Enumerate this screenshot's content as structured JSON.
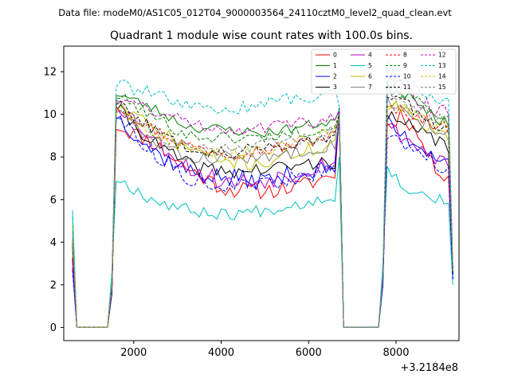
{
  "suptitle": "Data file: modeM0/AS1C05_012T04_9000003564_24110cztM0_level2_quad_clean.evt",
  "chart_data": {
    "type": "line",
    "title": "Quadrant 1 module wise count rates with 100.0s bins.",
    "xlabel": "",
    "ylabel": "",
    "x_offset_label": "+3.2184e8",
    "xlim": [
      400,
      9440
    ],
    "ylim": [
      -0.62,
      13.2
    ],
    "xticks": [
      2000,
      4000,
      6000,
      8000
    ],
    "yticks": [
      0,
      2,
      4,
      6,
      8,
      10,
      12
    ],
    "grid": false,
    "legend_position": "top-right",
    "legend_columns": 4,
    "x_start": 600,
    "x_step": 100,
    "num_points": 88,
    "segments": [
      {
        "kind": "gap",
        "start": 700,
        "end": 1400
      },
      {
        "kind": "active",
        "start": 1500,
        "end": 6700
      },
      {
        "kind": "gap",
        "start": 6800,
        "end": 7700
      },
      {
        "kind": "active",
        "start": 7800,
        "end": 9200
      }
    ],
    "series": [
      {
        "name": "0",
        "color": "#ff0000",
        "dash": false,
        "start_value": 3.3,
        "edge_values": [
          1.6,
          0.5,
          10.0,
          2.2,
          2.5
        ],
        "level_a": [
          9.5,
          8.7,
          7.4,
          6.5,
          6.4,
          6.6,
          7.2
        ],
        "level_b": [
          9.4,
          10.1,
          9.0,
          7.6,
          7.1
        ],
        "noise_a": 0.4,
        "noise_b": 0.4,
        "seed": 11
      },
      {
        "name": "1",
        "color": "#008000",
        "dash": false,
        "start_value": 3.6,
        "edge_values": [
          1.8,
          0.4,
          10.2,
          2.1,
          2.6
        ],
        "level_a": [
          11.0,
          10.3,
          9.4,
          9.3,
          9.1,
          9.4,
          9.7
        ],
        "level_b": [
          11.2,
          11.1,
          10.7,
          10.0,
          9.5
        ],
        "noise_a": 0.25,
        "noise_b": 0.3,
        "seed": 23
      },
      {
        "name": "2",
        "color": "#0000ff",
        "dash": false,
        "start_value": 2.8,
        "edge_values": [
          1.7,
          0.5,
          10.1,
          2.0,
          2.3
        ],
        "level_a": [
          10.0,
          8.3,
          7.3,
          7.0,
          6.9,
          7.2,
          7.5
        ],
        "level_b": [
          9.6,
          9.0,
          8.6,
          8.2,
          7.8
        ],
        "noise_a": 0.45,
        "noise_b": 0.4,
        "seed": 37
      },
      {
        "name": "3",
        "color": "#000000",
        "dash": false,
        "start_value": 3.2,
        "edge_values": [
          1.6,
          0.5,
          10.3,
          2.3,
          2.6
        ],
        "level_a": [
          10.3,
          8.7,
          7.6,
          7.3,
          7.4,
          7.6,
          7.8
        ],
        "level_b": [
          9.8,
          9.6,
          9.1,
          8.9,
          8.4
        ],
        "noise_a": 0.35,
        "noise_b": 0.4,
        "seed": 41
      },
      {
        "name": "4",
        "color": "#bf00bf",
        "dash": false,
        "start_value": 3.1,
        "edge_values": [
          1.7,
          0.5,
          10.1,
          2.2,
          2.5
        ],
        "level_a": [
          10.6,
          8.9,
          7.5,
          6.8,
          6.9,
          7.3,
          7.9
        ],
        "level_b": [
          9.4,
          9.0,
          8.5,
          8.0,
          7.8
        ],
        "noise_a": 0.45,
        "noise_b": 0.4,
        "seed": 53
      },
      {
        "name": "5",
        "color": "#00bfbf",
        "dash": false,
        "start_value": 5.5,
        "edge_values": [
          2.6,
          0.5,
          8.0,
          3.0,
          2.0
        ],
        "level_a": [
          7.0,
          6.0,
          5.5,
          5.3,
          5.5,
          5.8,
          6.2
        ],
        "level_b": [
          7.4,
          6.7,
          6.3,
          6.1,
          5.9
        ],
        "noise_a": 0.3,
        "noise_b": 0.3,
        "seed": 67
      },
      {
        "name": "6",
        "color": "#bfbf00",
        "dash": false,
        "start_value": 4.8,
        "edge_values": [
          2.0,
          0.5,
          9.5,
          2.4,
          2.6
        ],
        "level_a": [
          10.6,
          9.3,
          8.4,
          7.8,
          7.7,
          8.2,
          8.6
        ],
        "level_b": [
          10.4,
          10.2,
          9.6,
          9.4,
          9.1
        ],
        "noise_a": 0.35,
        "noise_b": 0.35,
        "seed": 71
      },
      {
        "name": "7",
        "color": "#808080",
        "dash": false,
        "start_value": 4.5,
        "edge_values": [
          2.0,
          0.5,
          9.8,
          2.4,
          2.7
        ],
        "level_a": [
          10.2,
          8.7,
          7.9,
          8.0,
          7.9,
          8.3,
          8.6
        ],
        "level_b": [
          10.8,
          10.1,
          9.8,
          9.4,
          9.0
        ],
        "noise_a": 0.3,
        "noise_b": 0.35,
        "seed": 83
      },
      {
        "name": "8",
        "color": "#ff0000",
        "dash": true,
        "start_value": 3.9,
        "edge_values": [
          1.9,
          0.5,
          9.9,
          2.3,
          2.6
        ],
        "level_a": [
          10.5,
          9.3,
          8.5,
          8.2,
          8.3,
          8.6,
          9.0
        ],
        "level_b": [
          10.3,
          10.1,
          9.9,
          9.6,
          9.3
        ],
        "noise_a": 0.3,
        "noise_b": 0.3,
        "seed": 97
      },
      {
        "name": "9",
        "color": "#008000",
        "dash": true,
        "start_value": 4.1,
        "edge_values": [
          1.9,
          0.5,
          10.0,
          2.3,
          2.6
        ],
        "level_a": [
          10.9,
          9.9,
          9.0,
          8.9,
          8.9,
          9.2,
          9.4
        ],
        "level_b": [
          11.8,
          11.0,
          10.6,
          10.2,
          9.8
        ],
        "noise_a": 0.3,
        "noise_b": 0.3,
        "seed": 101
      },
      {
        "name": "10",
        "color": "#0000ff",
        "dash": true,
        "start_value": 2.7,
        "edge_values": [
          1.6,
          0.5,
          9.7,
          2.0,
          2.2
        ],
        "level_a": [
          10.0,
          8.2,
          7.0,
          6.6,
          6.7,
          7.0,
          7.4
        ],
        "level_b": [
          9.0,
          8.7,
          8.3,
          7.8,
          7.4
        ],
        "noise_a": 0.35,
        "noise_b": 0.35,
        "seed": 113
      },
      {
        "name": "11",
        "color": "#000000",
        "dash": true,
        "start_value": 3.8,
        "edge_values": [
          1.8,
          0.5,
          10.0,
          2.2,
          2.5
        ],
        "level_a": [
          10.6,
          9.3,
          8.4,
          8.2,
          8.4,
          8.7,
          9.0
        ],
        "level_b": [
          10.9,
          10.6,
          10.0,
          9.6,
          9.2
        ],
        "noise_a": 0.3,
        "noise_b": 0.3,
        "seed": 127
      },
      {
        "name": "12",
        "color": "#bf00bf",
        "dash": true,
        "start_value": 4.0,
        "edge_values": [
          1.9,
          0.5,
          10.2,
          2.3,
          2.7
        ],
        "level_a": [
          10.8,
          10.2,
          9.6,
          9.3,
          9.4,
          9.6,
          9.8
        ],
        "level_b": [
          11.1,
          11.4,
          10.7,
          10.3,
          10.0
        ],
        "noise_a": 0.3,
        "noise_b": 0.35,
        "seed": 131
      },
      {
        "name": "13",
        "color": "#00bfbf",
        "dash": true,
        "start_value": 5.2,
        "edge_values": [
          2.4,
          0.5,
          10.4,
          2.6,
          2.9
        ],
        "level_a": [
          11.4,
          11.0,
          10.3,
          10.2,
          10.5,
          10.8,
          11.0
        ],
        "level_b": [
          12.4,
          11.6,
          11.2,
          10.9,
          10.6
        ],
        "noise_a": 0.3,
        "noise_b": 0.3,
        "seed": 139
      },
      {
        "name": "14",
        "color": "#bfbf00",
        "dash": true,
        "start_value": 4.3,
        "edge_values": [
          2.0,
          0.5,
          9.8,
          2.4,
          2.6
        ],
        "level_a": [
          10.3,
          9.2,
          8.3,
          8.1,
          8.3,
          8.7,
          9.2
        ],
        "level_b": [
          10.5,
          10.3,
          10.0,
          9.7,
          9.4
        ],
        "noise_a": 0.3,
        "noise_b": 0.3,
        "seed": 149
      },
      {
        "name": "15",
        "color": "#808080",
        "dash": true,
        "start_value": 4.2,
        "edge_values": [
          2.0,
          0.5,
          9.9,
          2.4,
          2.6
        ],
        "level_a": [
          10.5,
          9.1,
          8.4,
          8.3,
          8.5,
          8.8,
          9.2
        ],
        "level_b": [
          11.0,
          10.5,
          10.2,
          9.9,
          9.6
        ],
        "noise_a": 0.3,
        "noise_b": 0.3,
        "seed": 151
      }
    ]
  }
}
